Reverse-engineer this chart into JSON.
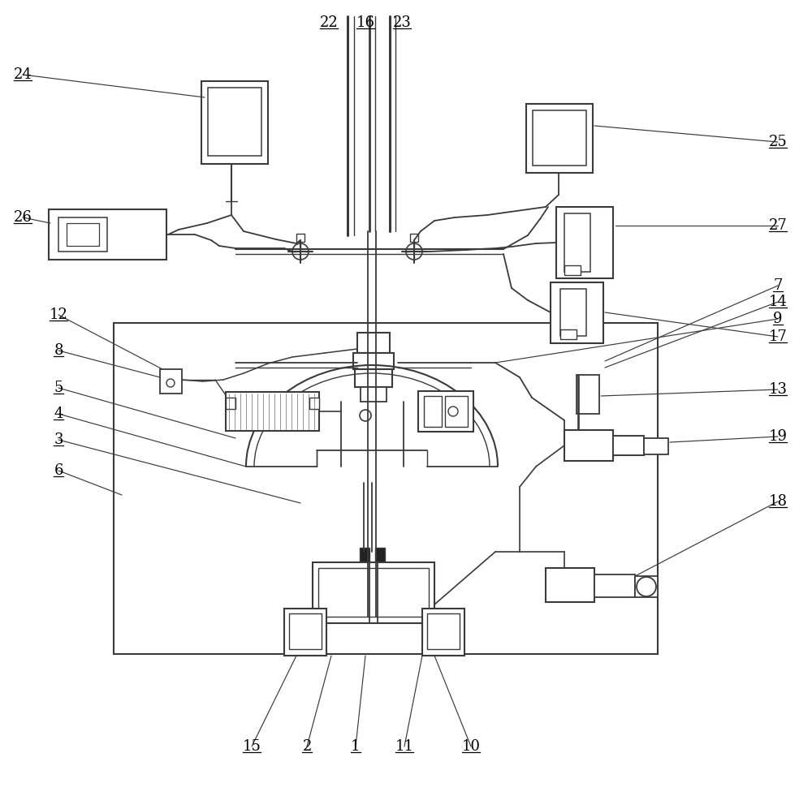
{
  "line_color": "#3a3a3a",
  "bg_color": "#ffffff",
  "lw_main": 1.3,
  "lw_thin": 0.9,
  "lw_thick": 1.8,
  "label_fs": 13,
  "underline_labels": [
    [
      "22",
      405,
      28
    ],
    [
      "16",
      450,
      28
    ],
    [
      "23",
      495,
      28
    ],
    [
      "24",
      28,
      92
    ],
    [
      "25",
      958,
      175
    ],
    [
      "26",
      28,
      268
    ],
    [
      "27",
      958,
      278
    ],
    [
      "12",
      72,
      388
    ],
    [
      "8",
      72,
      432
    ],
    [
      "7",
      958,
      352
    ],
    [
      "14",
      958,
      372
    ],
    [
      "9",
      958,
      393
    ],
    [
      "17",
      958,
      415
    ],
    [
      "5",
      72,
      478
    ],
    [
      "4",
      72,
      510
    ],
    [
      "3",
      72,
      542
    ],
    [
      "6",
      72,
      580
    ],
    [
      "13",
      958,
      480
    ],
    [
      "19",
      958,
      538
    ],
    [
      "18",
      958,
      618
    ],
    [
      "15",
      310,
      920
    ],
    [
      "2",
      378,
      920
    ],
    [
      "1",
      438,
      920
    ],
    [
      "11",
      498,
      920
    ],
    [
      "10",
      580,
      920
    ]
  ]
}
